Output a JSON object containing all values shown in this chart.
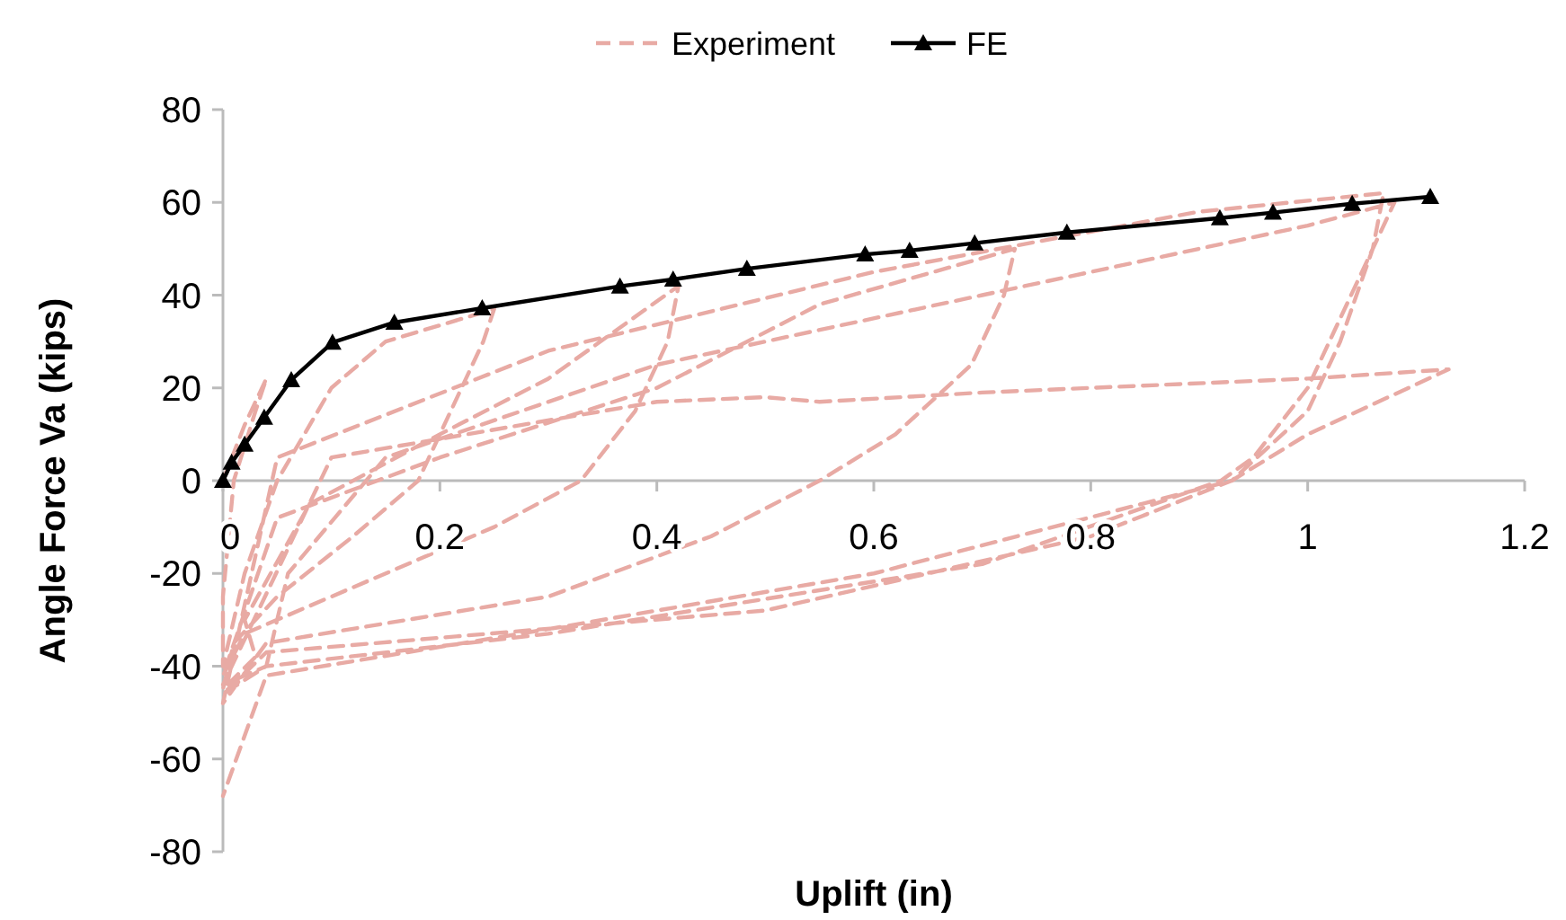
{
  "chart_data": {
    "type": "line",
    "xlabel": "Uplift (in)",
    "ylabel": "Angle Force Va (kips)",
    "xlim": [
      0,
      1.2
    ],
    "ylim": [
      -80,
      80
    ],
    "xticks": [
      0,
      0.2,
      0.4,
      0.6,
      0.8,
      1,
      1.2
    ],
    "yticks": [
      -80,
      -60,
      -40,
      -20,
      0,
      20,
      40,
      60,
      80
    ],
    "grid": false,
    "legend": "top",
    "series": [
      {
        "name": "Experiment",
        "color": "#e8aaa4",
        "line_style": "dashed",
        "marker": "none",
        "x": [
          0,
          0.02,
          0.04,
          0.03,
          0.01,
          0,
          0,
          0.02,
          0.05,
          0.1,
          0.15,
          0.25,
          0.24,
          0.21,
          0.18,
          0.12,
          0.05,
          0.01,
          0,
          0.03,
          0.02,
          0.08,
          0.2,
          0.3,
          0.42,
          0.41,
          0.38,
          0.33,
          0.25,
          0.1,
          0.02,
          0,
          0.05,
          0.2,
          0.4,
          0.55,
          0.73,
          0.72,
          0.69,
          0.62,
          0.55,
          0.45,
          0.3,
          0.04,
          0,
          0.05,
          0.3,
          0.6,
          0.9,
          1.07,
          1.06,
          1.03,
          1,
          0.93,
          0.8,
          0.5,
          0.04,
          0,
          0.04,
          0.06,
          0.15,
          0.4,
          0.7,
          1,
          1.08,
          1.05,
          1,
          0.95,
          0.92,
          0.7,
          0.3,
          0.04,
          0,
          0.1,
          0.4,
          0.5,
          0.55,
          0.7,
          1,
          1.13,
          1,
          0.93,
          0.6,
          0.3,
          0.04,
          0
        ],
        "values": [
          0,
          12,
          22,
          15,
          0,
          -25,
          -40,
          -20,
          0,
          20,
          30,
          37,
          30,
          15,
          0,
          -12,
          -25,
          -35,
          -45,
          -38,
          -30,
          -5,
          10,
          22,
          42,
          30,
          15,
          0,
          -10,
          -25,
          -33,
          -42,
          -8,
          5,
          20,
          38,
          50,
          40,
          25,
          10,
          0,
          -12,
          -25,
          -35,
          -48,
          5,
          28,
          45,
          58,
          62,
          50,
          30,
          15,
          0,
          -12,
          -28,
          -37,
          -46,
          -40,
          -20,
          5,
          25,
          40,
          55,
          60,
          45,
          20,
          5,
          0,
          -18,
          -33,
          -40,
          -44,
          5,
          17,
          18,
          17,
          19,
          22,
          24,
          10,
          0,
          -20,
          -32,
          -42,
          -68
        ]
      },
      {
        "name": "FE",
        "color": "#000000",
        "line_style": "solid",
        "marker": "triangle",
        "x": [
          0,
          0.008,
          0.02,
          0.038,
          0.063,
          0.101,
          0.158,
          0.239,
          0.366,
          0.415,
          0.483,
          0.592,
          0.633,
          0.693,
          0.778,
          0.919,
          0.968,
          1.041,
          1.113
        ],
        "values": [
          0,
          3.9,
          7.8,
          13.6,
          21.7,
          29.8,
          34.1,
          37.2,
          41.9,
          43.4,
          45.7,
          48.8,
          49.6,
          51.2,
          53.5,
          56.6,
          57.8,
          59.7,
          61.2
        ]
      }
    ]
  }
}
